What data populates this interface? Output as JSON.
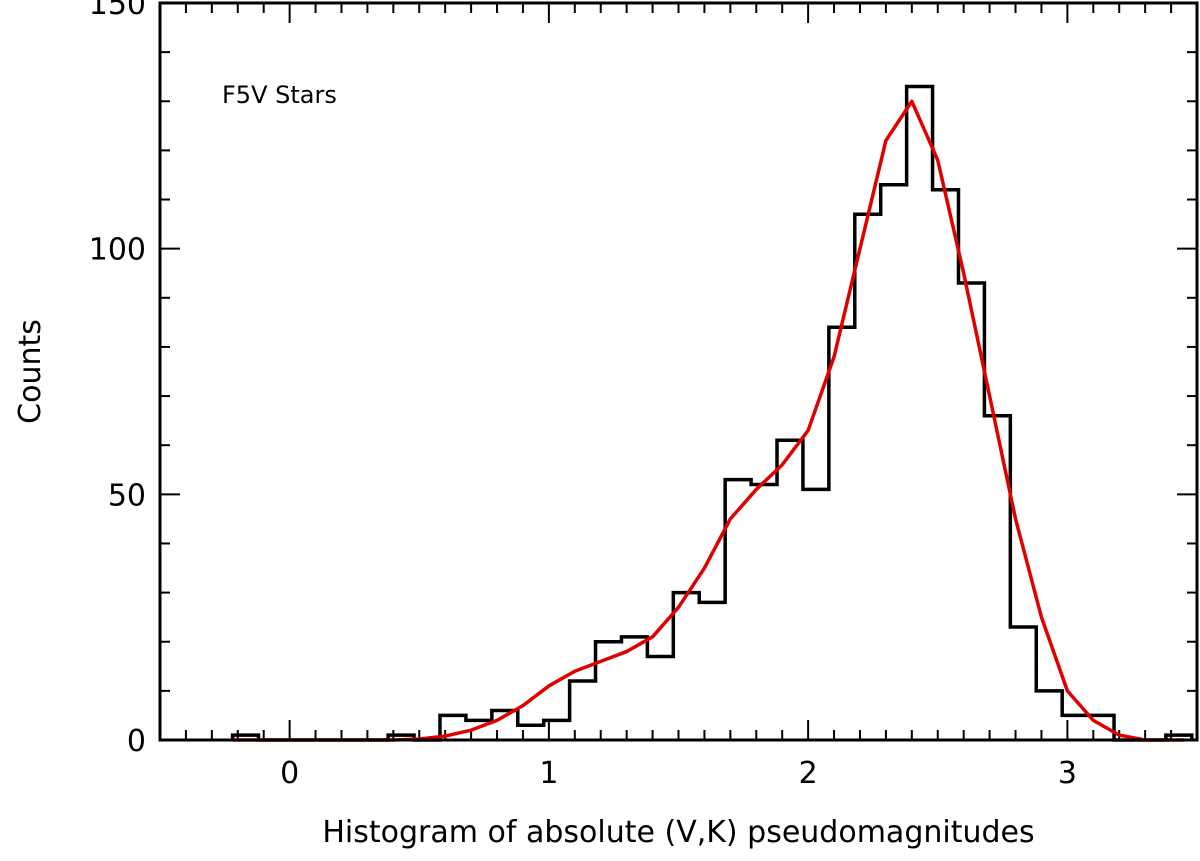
{
  "chart_data": {
    "type": "bar",
    "xlabel": "Histogram of absolute (V,K) pseudomagnitudes",
    "ylabel": "Counts",
    "annotation": "F5V Stars",
    "xlim": [
      -0.5,
      3.5
    ],
    "ylim": [
      0,
      150
    ],
    "x_ticks": [
      0,
      1,
      2,
      3
    ],
    "y_ticks": [
      0,
      50,
      100,
      150
    ],
    "x_tick_labels": [
      "0",
      "1",
      "2",
      "3"
    ],
    "y_tick_labels": [
      "0",
      "50",
      "100",
      "150"
    ],
    "bin_width": 0.1,
    "histogram": {
      "bin_left_edges": [
        -0.22,
        -0.12,
        -0.02,
        0.08,
        0.18,
        0.28,
        0.38,
        0.48,
        0.58,
        0.68,
        0.78,
        0.88,
        0.98,
        1.08,
        1.18,
        1.28,
        1.38,
        1.48,
        1.58,
        1.68,
        1.78,
        1.88,
        1.98,
        2.08,
        2.18,
        2.28,
        2.38,
        2.48,
        2.58,
        2.68,
        2.78,
        2.88,
        2.98,
        3.08,
        3.18,
        3.28,
        3.38
      ],
      "counts": [
        1,
        0,
        0,
        0,
        0,
        0,
        1,
        0,
        5,
        4,
        6,
        3,
        4,
        12,
        20,
        21,
        17,
        30,
        28,
        53,
        52,
        61,
        51,
        84,
        107,
        113,
        133,
        112,
        93,
        66,
        23,
        10,
        5,
        5,
        0,
        0,
        1
      ],
      "color": "#000000"
    },
    "fit_curve": {
      "x": [
        -0.22,
        0.2,
        0.3,
        0.4,
        0.5,
        0.6,
        0.7,
        0.8,
        0.9,
        1.0,
        1.1,
        1.2,
        1.3,
        1.4,
        1.5,
        1.6,
        1.7,
        1.8,
        1.9,
        2.0,
        2.1,
        2.2,
        2.3,
        2.4,
        2.5,
        2.6,
        2.7,
        2.8,
        2.9,
        3.0,
        3.1,
        3.2,
        3.3,
        3.45
      ],
      "y": [
        0,
        0,
        0,
        0,
        0.2,
        0.8,
        2,
        4,
        7,
        11,
        14,
        16,
        18,
        21,
        27,
        35,
        45,
        51,
        56,
        63,
        78,
        100,
        122,
        130,
        118,
        95,
        70,
        45,
        25,
        10,
        4,
        1,
        0,
        0
      ],
      "color": "#e00000"
    }
  }
}
